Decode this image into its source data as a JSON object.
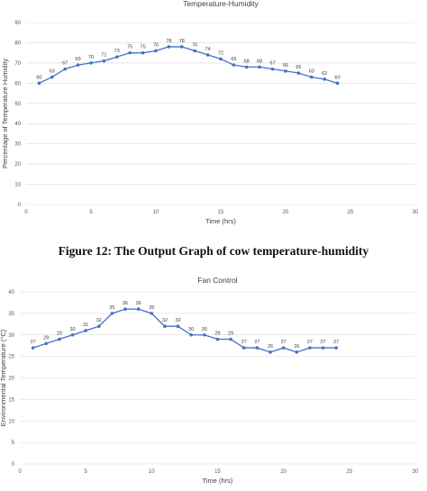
{
  "caption": "Figure 12: The Output Graph of cow temperature-humidity",
  "chart_data": [
    {
      "type": "line",
      "title": "Temperature-Humidity",
      "xlabel": "Time (hrs)",
      "ylabel": "Percentage of Temperature Humidity",
      "xlim": [
        0,
        30
      ],
      "ylim": [
        0,
        90
      ],
      "x_ticks": [
        0,
        5,
        10,
        15,
        20,
        25,
        30
      ],
      "y_ticks": [
        0,
        10,
        20,
        30,
        40,
        50,
        60,
        70,
        80,
        90
      ],
      "grid": "horizontal",
      "color": "#4472c4",
      "x": [
        1,
        2,
        3,
        4,
        5,
        6,
        7,
        8,
        9,
        10,
        11,
        12,
        13,
        14,
        15,
        16,
        17,
        18,
        19,
        20,
        21,
        22,
        23,
        24
      ],
      "values": [
        60,
        63,
        67,
        69,
        70,
        71,
        73,
        75,
        75,
        76,
        78,
        78,
        76,
        74,
        72,
        69,
        68,
        68,
        67,
        66,
        65,
        63,
        62,
        60
      ],
      "labels": [
        "60",
        "63",
        "67",
        "69",
        "70",
        "71",
        "73",
        "75",
        "75",
        "76",
        "78",
        "78",
        "76",
        "74",
        "72",
        "69",
        "68",
        "68",
        "67",
        "66",
        "65",
        "63",
        "62",
        "60"
      ]
    },
    {
      "type": "line",
      "title": "Fan Control",
      "xlabel": "Time (hrs)",
      "ylabel": "Environmental Temperature (°C)",
      "xlim": [
        0,
        30
      ],
      "ylim": [
        0,
        40
      ],
      "x_ticks": [
        0,
        5,
        10,
        15,
        20,
        25,
        30
      ],
      "y_ticks": [
        0,
        5,
        10,
        15,
        20,
        25,
        30,
        35,
        40
      ],
      "grid": "horizontal",
      "color": "#4472c4",
      "x": [
        1,
        2,
        3,
        4,
        5,
        6,
        7,
        8,
        9,
        10,
        11,
        12,
        13,
        14,
        15,
        16,
        17,
        18,
        19,
        20,
        21,
        22,
        23,
        24
      ],
      "values": [
        27,
        28,
        29,
        30,
        31,
        32,
        35,
        36,
        36,
        35,
        32,
        32,
        30,
        30,
        29,
        29,
        27,
        27,
        26,
        27,
        26,
        27,
        27,
        27
      ],
      "labels": [
        "27",
        "28",
        "29",
        "30",
        "31",
        "32",
        "35",
        "36",
        "36",
        "35",
        "32",
        "32",
        "30",
        "30",
        "29",
        "29",
        "27",
        "27",
        "26",
        "27",
        "26",
        "27",
        "27",
        "27"
      ]
    }
  ]
}
